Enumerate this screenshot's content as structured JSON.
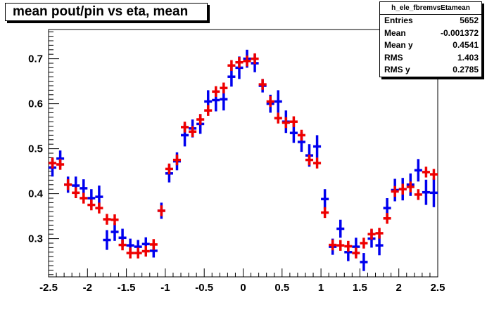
{
  "title": "mean pout/pin vs eta, mean",
  "stats": {
    "name": "h_ele_fbremvsEtamean",
    "rows": [
      {
        "label": "Entries",
        "value": "5652"
      },
      {
        "label": "Mean",
        "value": "-0.001372"
      },
      {
        "label": "Mean y",
        "value": "0.4541"
      },
      {
        "label": "RMS",
        "value": "1.403"
      },
      {
        "label": "RMS y",
        "value": "0.2785"
      }
    ]
  },
  "colors": {
    "blue": "#0000ee",
    "red": "#ee0000"
  },
  "chart_data": {
    "type": "scatter",
    "title": "mean pout/pin vs eta, mean",
    "xlabel": "",
    "ylabel": "",
    "xlim": [
      -2.5,
      2.5
    ],
    "ylim": [
      0.215,
      0.765
    ],
    "xticks": [
      -2.5,
      -2,
      -1.5,
      -1,
      -0.5,
      0,
      0.5,
      1,
      1.5,
      2,
      2.5
    ],
    "xtick_labels": [
      "-2.5",
      "-2",
      "-1.5",
      "-1",
      "-0.5",
      "0",
      "0.5",
      "1",
      "1.5",
      "2",
      "2.5"
    ],
    "yticks": [
      0.3,
      0.4,
      0.5,
      0.6,
      0.7
    ],
    "ytick_labels": [
      "0.3",
      "0.4",
      "0.5",
      "0.6",
      "0.7"
    ],
    "grid": false,
    "series": [
      {
        "color": "#0000ee",
        "x": [
          -2.45,
          -2.35,
          -2.25,
          -2.15,
          -2.05,
          -1.95,
          -1.85,
          -1.75,
          -1.65,
          -1.55,
          -1.45,
          -1.35,
          -1.25,
          -1.15,
          -1.05,
          -0.95,
          -0.85,
          -0.75,
          -0.65,
          -0.55,
          -0.45,
          -0.35,
          -0.25,
          -0.15,
          -0.05,
          0.05,
          0.15,
          0.25,
          0.35,
          0.45,
          0.55,
          0.65,
          0.75,
          0.85,
          0.95,
          1.05,
          1.15,
          1.25,
          1.35,
          1.45,
          1.55,
          1.65,
          1.75,
          1.85,
          1.95,
          2.05,
          2.15,
          2.25,
          2.35,
          2.45
        ],
        "y": [
          0.458,
          0.478,
          0.42,
          0.418,
          0.412,
          0.39,
          0.393,
          0.297,
          0.315,
          0.302,
          0.285,
          0.282,
          0.288,
          0.273,
          0.362,
          0.445,
          0.472,
          0.53,
          0.545,
          0.555,
          0.605,
          0.608,
          0.61,
          0.66,
          0.68,
          0.7,
          0.69,
          0.64,
          0.6,
          0.605,
          0.56,
          0.535,
          0.515,
          0.485,
          0.505,
          0.388,
          0.282,
          0.322,
          0.27,
          0.282,
          0.248,
          0.3,
          0.285,
          0.368,
          0.408,
          0.41,
          0.42,
          0.452,
          0.403,
          0.402
        ],
        "err": [
          0.02,
          0.018,
          0.018,
          0.02,
          0.02,
          0.02,
          0.025,
          0.022,
          0.02,
          0.02,
          0.015,
          0.015,
          0.015,
          0.015,
          0.018,
          0.02,
          0.02,
          0.025,
          0.02,
          0.022,
          0.025,
          0.025,
          0.025,
          0.022,
          0.025,
          0.02,
          0.02,
          0.015,
          0.02,
          0.025,
          0.025,
          0.022,
          0.022,
          0.025,
          0.025,
          0.022,
          0.018,
          0.02,
          0.02,
          0.02,
          0.02,
          0.02,
          0.022,
          0.022,
          0.025,
          0.025,
          0.025,
          0.025,
          0.028,
          0.032
        ]
      },
      {
        "color": "#ee0000",
        "x": [
          -2.45,
          -2.35,
          -2.25,
          -2.15,
          -2.05,
          -1.95,
          -1.85,
          -1.75,
          -1.65,
          -1.55,
          -1.45,
          -1.35,
          -1.25,
          -1.15,
          -1.05,
          -0.95,
          -0.85,
          -0.75,
          -0.65,
          -0.55,
          -0.45,
          -0.35,
          -0.25,
          -0.15,
          -0.05,
          0.05,
          0.15,
          0.25,
          0.35,
          0.45,
          0.55,
          0.65,
          0.75,
          0.85,
          0.95,
          1.05,
          1.15,
          1.25,
          1.35,
          1.45,
          1.55,
          1.65,
          1.75,
          1.85,
          1.95,
          2.05,
          2.15,
          2.25,
          2.35,
          2.45
        ],
        "y": [
          0.468,
          0.465,
          0.42,
          0.402,
          0.39,
          0.375,
          0.368,
          0.343,
          0.342,
          0.286,
          0.268,
          0.268,
          0.272,
          0.287,
          0.362,
          0.455,
          0.475,
          0.548,
          0.538,
          0.565,
          0.585,
          0.627,
          0.635,
          0.685,
          0.692,
          0.695,
          0.7,
          0.643,
          0.605,
          0.568,
          0.558,
          0.56,
          0.53,
          0.475,
          0.468,
          0.358,
          0.286,
          0.285,
          0.283,
          0.268,
          0.29,
          0.31,
          0.312,
          0.345,
          0.405,
          0.41,
          0.415,
          0.398,
          0.448,
          0.443
        ]
      }
    ]
  }
}
